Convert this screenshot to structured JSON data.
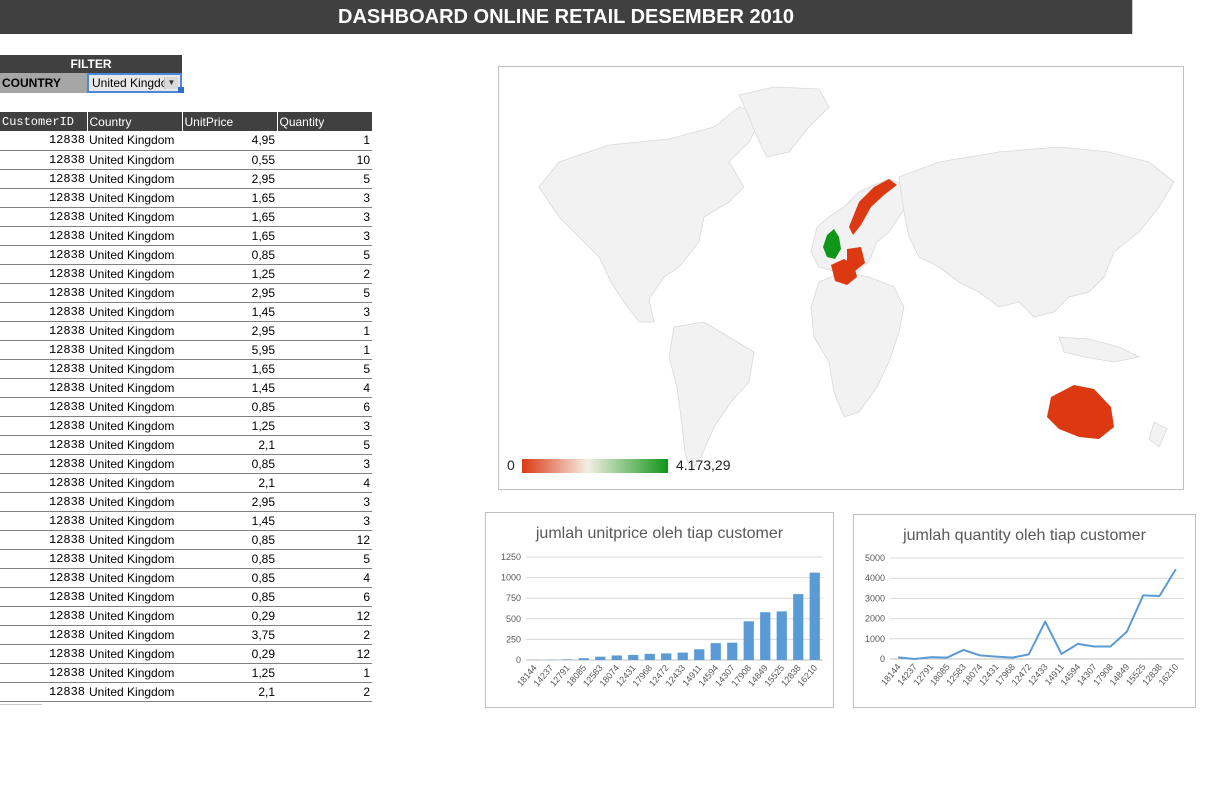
{
  "dashboard": {
    "title": "DASHBOARD ONLINE RETAIL DESEMBER 2010"
  },
  "filter": {
    "header": "FILTER",
    "label": "COUNTRY",
    "value": "United Kingdom"
  },
  "table": {
    "headers": [
      "CustomerID",
      "Country",
      "UnitPrice",
      "Quantity"
    ],
    "rows": [
      [
        "12838",
        "United Kingdom",
        "4,95",
        "1"
      ],
      [
        "12838",
        "United Kingdom",
        "0,55",
        "10"
      ],
      [
        "12838",
        "United Kingdom",
        "2,95",
        "5"
      ],
      [
        "12838",
        "United Kingdom",
        "1,65",
        "3"
      ],
      [
        "12838",
        "United Kingdom",
        "1,65",
        "3"
      ],
      [
        "12838",
        "United Kingdom",
        "1,65",
        "3"
      ],
      [
        "12838",
        "United Kingdom",
        "0,85",
        "5"
      ],
      [
        "12838",
        "United Kingdom",
        "1,25",
        "2"
      ],
      [
        "12838",
        "United Kingdom",
        "2,95",
        "5"
      ],
      [
        "12838",
        "United Kingdom",
        "1,45",
        "3"
      ],
      [
        "12838",
        "United Kingdom",
        "2,95",
        "1"
      ],
      [
        "12838",
        "United Kingdom",
        "5,95",
        "1"
      ],
      [
        "12838",
        "United Kingdom",
        "1,65",
        "5"
      ],
      [
        "12838",
        "United Kingdom",
        "1,45",
        "4"
      ],
      [
        "12838",
        "United Kingdom",
        "0,85",
        "6"
      ],
      [
        "12838",
        "United Kingdom",
        "1,25",
        "3"
      ],
      [
        "12838",
        "United Kingdom",
        "2,1",
        "5"
      ],
      [
        "12838",
        "United Kingdom",
        "0,85",
        "3"
      ],
      [
        "12838",
        "United Kingdom",
        "2,1",
        "4"
      ],
      [
        "12838",
        "United Kingdom",
        "2,95",
        "3"
      ],
      [
        "12838",
        "United Kingdom",
        "1,45",
        "3"
      ],
      [
        "12838",
        "United Kingdom",
        "0,85",
        "12"
      ],
      [
        "12838",
        "United Kingdom",
        "0,85",
        "5"
      ],
      [
        "12838",
        "United Kingdom",
        "0,85",
        "4"
      ],
      [
        "12838",
        "United Kingdom",
        "0,85",
        "6"
      ],
      [
        "12838",
        "United Kingdom",
        "0,29",
        "12"
      ],
      [
        "12838",
        "United Kingdom",
        "3,75",
        "2"
      ],
      [
        "12838",
        "United Kingdom",
        "0,29",
        "12"
      ],
      [
        "12838",
        "United Kingdom",
        "1,25",
        "1"
      ],
      [
        "12838",
        "United Kingdom",
        "2,1",
        "2"
      ]
    ]
  },
  "map": {
    "legend_min": "0",
    "legend_max": "4.173,29",
    "colors": {
      "low": "#dc3912",
      "mid": "#f3eee4",
      "high": "#109618",
      "land": "#f2f2f2",
      "border": "#d9d9d9"
    },
    "highlighted": [
      {
        "region": "United Kingdom",
        "color": "#109618"
      },
      {
        "region": "Norway",
        "color": "#dc3912"
      },
      {
        "region": "France",
        "color": "#dc3912"
      },
      {
        "region": "Germany",
        "color": "#dc3912"
      },
      {
        "region": "Netherlands",
        "color": "#dc3912"
      },
      {
        "region": "Australia",
        "color": "#dc3912"
      }
    ]
  },
  "chart_data": [
    {
      "type": "bar",
      "title": "jumlah unitprice oleh tiap customer",
      "categories": [
        "18144",
        "14237",
        "12791",
        "18085",
        "12583",
        "18074",
        "12431",
        "17968",
        "12472",
        "12433",
        "14911",
        "14594",
        "14307",
        "17908",
        "14849",
        "15525",
        "12838",
        "16210"
      ],
      "values": [
        2,
        3,
        8,
        22,
        40,
        55,
        62,
        75,
        80,
        90,
        130,
        205,
        210,
        470,
        580,
        590,
        800,
        1060
      ],
      "ylim": [
        0,
        1250
      ],
      "yticks": [
        "0",
        "250",
        "500",
        "750",
        "1000",
        "1250"
      ],
      "color": "#5b9bd5",
      "grid": true
    },
    {
      "type": "line",
      "title": "jumlah quantity oleh tiap customer",
      "categories": [
        "18144",
        "14237",
        "12791",
        "18085",
        "12583",
        "18074",
        "12431",
        "17968",
        "12472",
        "12433",
        "14911",
        "14594",
        "14307",
        "17908",
        "14849",
        "15525",
        "12838",
        "16210"
      ],
      "values": [
        80,
        0,
        90,
        70,
        450,
        180,
        120,
        70,
        230,
        1850,
        250,
        750,
        620,
        620,
        1350,
        3150,
        3120,
        4450
      ],
      "ylim": [
        0,
        5000
      ],
      "yticks": [
        "0",
        "1000",
        "2000",
        "3000",
        "4000",
        "5000"
      ],
      "color": "#5b9bd5",
      "grid": true
    }
  ]
}
